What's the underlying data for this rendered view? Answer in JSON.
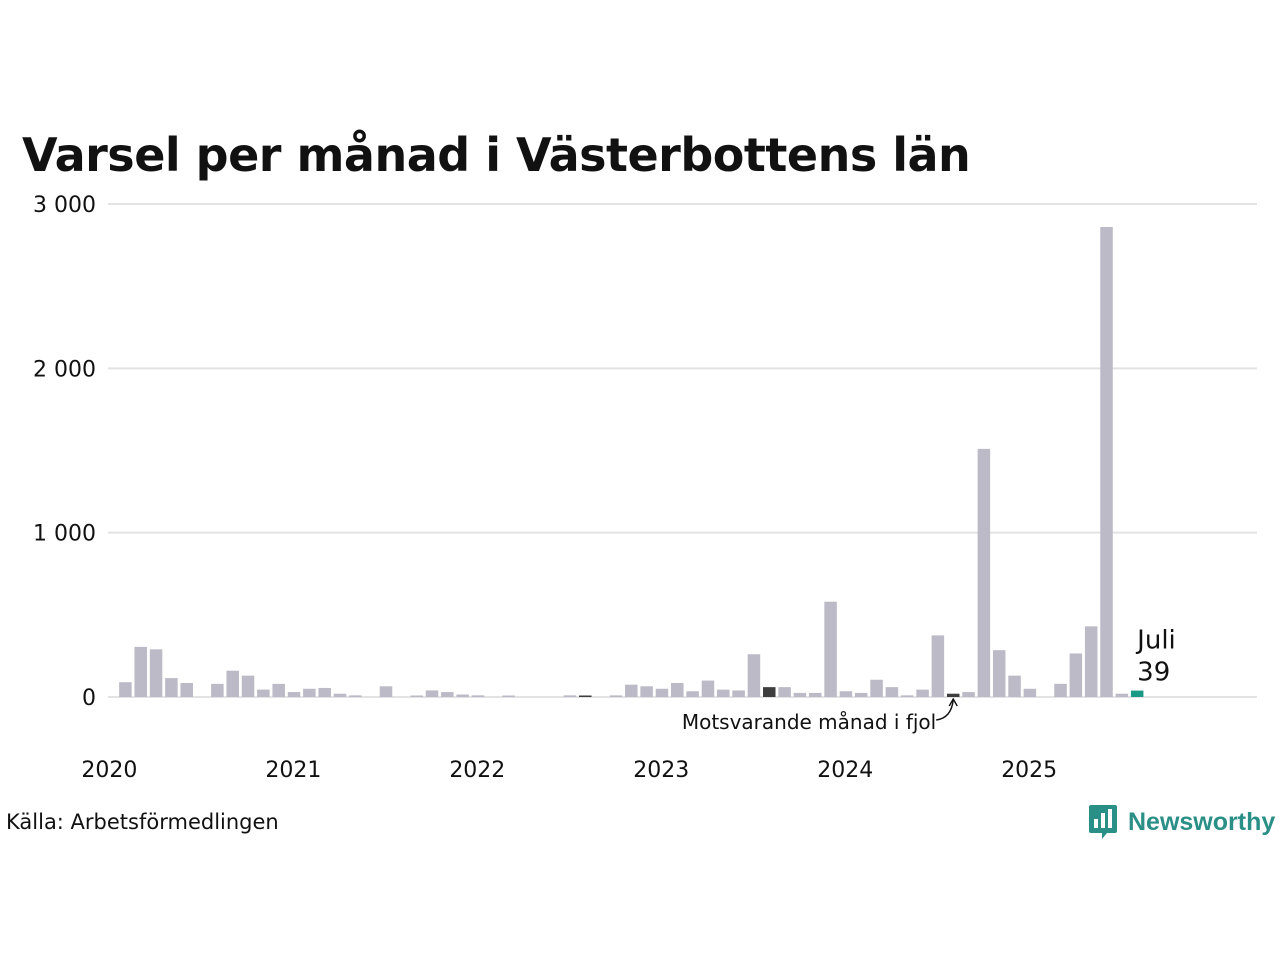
{
  "title": "Varsel per månad i Västerbottens län",
  "source": "Källa: Arbetsförmedlingen",
  "brand": {
    "name": "Newsworthy",
    "icon": "newsworthy-logo-icon"
  },
  "colors": {
    "bar": "#bbbac6",
    "bar_last_year": "#3d3d3d",
    "bar_current": "#1a9a86",
    "grid": "#e3e3e3",
    "text": "#111111",
    "brand": "#2a8f86"
  },
  "chart_data": {
    "type": "bar",
    "title": "Varsel per månad i Västerbottens län",
    "xlabel": "",
    "ylabel": "",
    "ylim": [
      0,
      3000
    ],
    "y_ticks": [
      {
        "value": 0,
        "label": "0"
      },
      {
        "value": 1000,
        "label": "1 000"
      },
      {
        "value": 2000,
        "label": "2 000"
      },
      {
        "value": 3000,
        "label": "3 000"
      }
    ],
    "x_ticks": [
      "2020",
      "2021",
      "2022",
      "2023",
      "2024",
      "2025"
    ],
    "grid": true,
    "start": "2020-01",
    "categories": [
      "2020-01",
      "2020-02",
      "2020-03",
      "2020-04",
      "2020-05",
      "2020-06",
      "2020-07",
      "2020-08",
      "2020-09",
      "2020-10",
      "2020-11",
      "2020-12",
      "2021-01",
      "2021-02",
      "2021-03",
      "2021-04",
      "2021-05",
      "2021-06",
      "2021-07",
      "2021-08",
      "2021-09",
      "2021-10",
      "2021-11",
      "2021-12",
      "2022-01",
      "2022-02",
      "2022-03",
      "2022-04",
      "2022-05",
      "2022-06",
      "2022-07",
      "2022-08",
      "2022-09",
      "2022-10",
      "2022-11",
      "2022-12",
      "2023-01",
      "2023-02",
      "2023-03",
      "2023-04",
      "2023-05",
      "2023-06",
      "2023-07",
      "2023-08",
      "2023-09",
      "2023-10",
      "2023-11",
      "2023-12",
      "2024-01",
      "2024-02",
      "2024-03",
      "2024-04",
      "2024-05",
      "2024-06",
      "2024-07",
      "2024-08",
      "2024-09",
      "2024-10",
      "2024-11",
      "2024-12",
      "2025-01",
      "2025-02",
      "2025-03",
      "2025-04",
      "2025-05",
      "2025-06",
      "2025-07"
    ],
    "values": [
      90,
      305,
      290,
      115,
      85,
      0,
      80,
      160,
      130,
      45,
      80,
      30,
      50,
      55,
      20,
      10,
      0,
      65,
      0,
      5,
      40,
      30,
      15,
      10,
      0,
      5,
      0,
      0,
      0,
      10,
      5,
      0,
      10,
      75,
      65,
      50,
      85,
      35,
      100,
      45,
      40,
      260,
      60,
      60,
      25,
      25,
      580,
      35,
      25,
      105,
      60,
      10,
      45,
      375,
      20,
      30,
      1510,
      285,
      130,
      50,
      0,
      80,
      265,
      430,
      2860,
      20,
      39
    ],
    "highlight_last_year": [
      "2021-07",
      "2022-07",
      "2023-07",
      "2024-07"
    ],
    "current": {
      "month": "2025-07",
      "label": "Juli",
      "value": 39,
      "value_label": "39"
    },
    "annotation": "Motsvarande månad i fjol"
  }
}
